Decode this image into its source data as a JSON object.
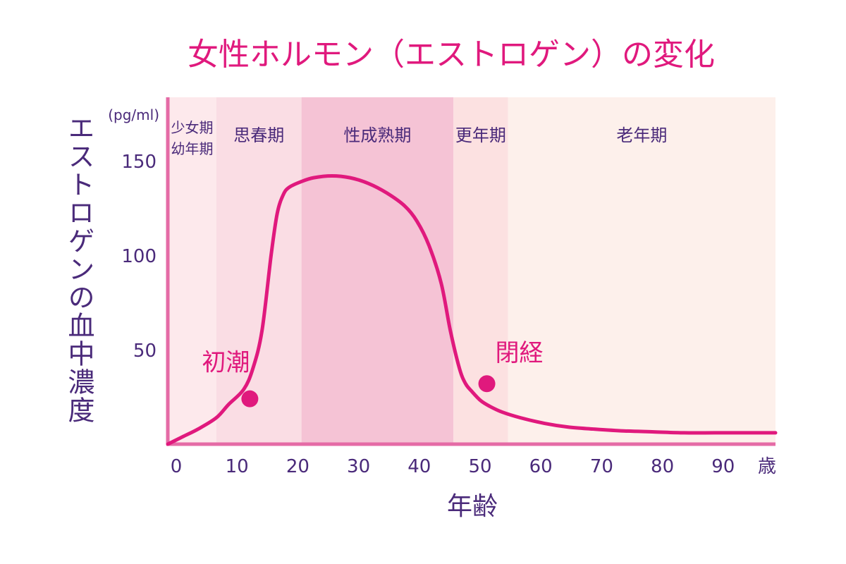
{
  "chart_data": {
    "type": "line",
    "title": "女性ホルモン（エストロゲン）の変化",
    "xlabel": "年齢",
    "ylabel": "エストロゲンの血中濃度",
    "y_unit": "(pg/ml)",
    "x_unit": "歳",
    "xlim": [
      0,
      100
    ],
    "ylim": [
      0,
      155
    ],
    "x_ticks": [
      "0",
      "10",
      "20",
      "30",
      "40",
      "50",
      "60",
      "70",
      "80",
      "90"
    ],
    "y_ticks": [
      "50",
      "100",
      "150"
    ],
    "grid": false,
    "series": [
      {
        "x": [
          0,
          2.5,
          5,
          8,
          10,
          12.5,
          14,
          15.5,
          17,
          18,
          19,
          20,
          22,
          24,
          27,
          30,
          33,
          36,
          39,
          41,
          43,
          45,
          46.5,
          48,
          49,
          50,
          51.5,
          53,
          55,
          58,
          62,
          66,
          70,
          75,
          80,
          85,
          90,
          95,
          100
        ],
        "y": [
          0,
          4,
          8,
          14,
          21,
          29,
          40,
          60,
          100,
          122,
          132,
          136,
          139,
          141,
          142,
          141,
          138,
          133,
          126,
          118,
          105,
          85,
          60,
          40,
          32,
          28,
          23,
          20,
          17,
          14,
          11,
          9,
          8,
          7,
          6.5,
          6,
          6,
          6,
          6
        ]
      }
    ],
    "life_stages": [
      {
        "label_lines": [
          "少女期",
          "幼年期"
        ],
        "from": 0,
        "to": 8,
        "color": "#fde9ec"
      },
      {
        "label_lines": [
          "思春期"
        ],
        "from": 8,
        "to": 22,
        "color": "#fadde4"
      },
      {
        "label_lines": [
          "性成熟期"
        ],
        "from": 22,
        "to": 47,
        "color": "#f5c3d5"
      },
      {
        "label_lines": [
          "更年期"
        ],
        "from": 47,
        "to": 56,
        "color": "#fce1e1"
      },
      {
        "label_lines": [
          "老年期"
        ],
        "from": 56,
        "to": 100,
        "color": "#fdf0eb"
      }
    ],
    "annotations": [
      {
        "label": "初潮",
        "x": 13.5,
        "y": 24
      },
      {
        "label": "閉経",
        "x": 52.5,
        "y": 32
      }
    ],
    "colors": {
      "curve": "#e0197d",
      "axis": "#e56ba6",
      "text": "#4a2a7a",
      "accent": "#e0197d"
    }
  }
}
